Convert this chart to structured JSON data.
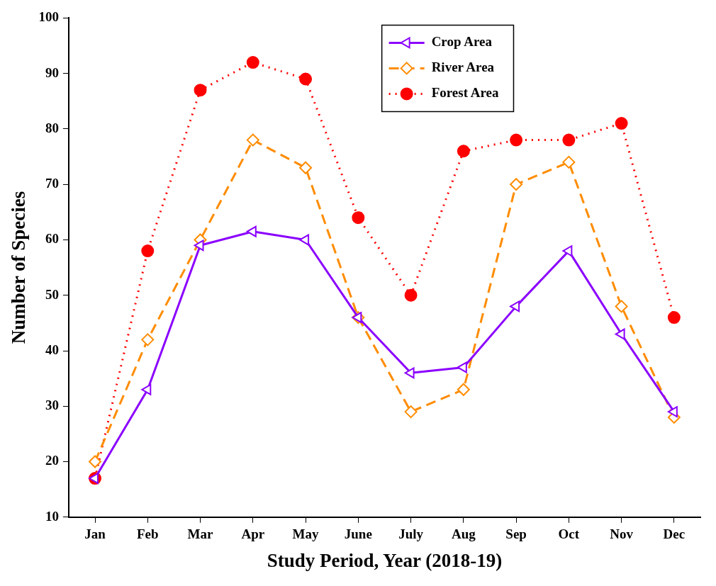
{
  "chart_data": {
    "type": "line",
    "xlabel": "Study Period, Year (2018-19)",
    "ylabel": "Number of Species",
    "categories": [
      "Jan",
      "Feb",
      "Mar",
      "Apr",
      "May",
      "June",
      "July",
      "Aug",
      "Sep",
      "Oct",
      "Nov",
      "Dec"
    ],
    "series": [
      {
        "name": "Crop Area",
        "color": "#8b00ff",
        "line_style": "solid",
        "marker": "triangle",
        "values": [
          17,
          33,
          59,
          61.5,
          60,
          46,
          36,
          37,
          48,
          58,
          43,
          29
        ]
      },
      {
        "name": "River Area",
        "color": "#ff8c00",
        "line_style": "dashed",
        "marker": "diamond",
        "values": [
          20,
          42,
          60,
          78,
          73,
          46,
          29,
          33,
          70,
          74,
          48,
          28
        ]
      },
      {
        "name": "Forest Area",
        "color": "#ff0000",
        "line_style": "dotted",
        "marker": "circle",
        "values": [
          17,
          58,
          87,
          92,
          89,
          64,
          50,
          76,
          78,
          78,
          81,
          46
        ]
      }
    ],
    "ylim": [
      10,
      100
    ],
    "yticks": [
      10,
      20,
      30,
      40,
      50,
      60,
      70,
      80,
      90,
      100
    ],
    "grid": false,
    "legend": "top"
  }
}
